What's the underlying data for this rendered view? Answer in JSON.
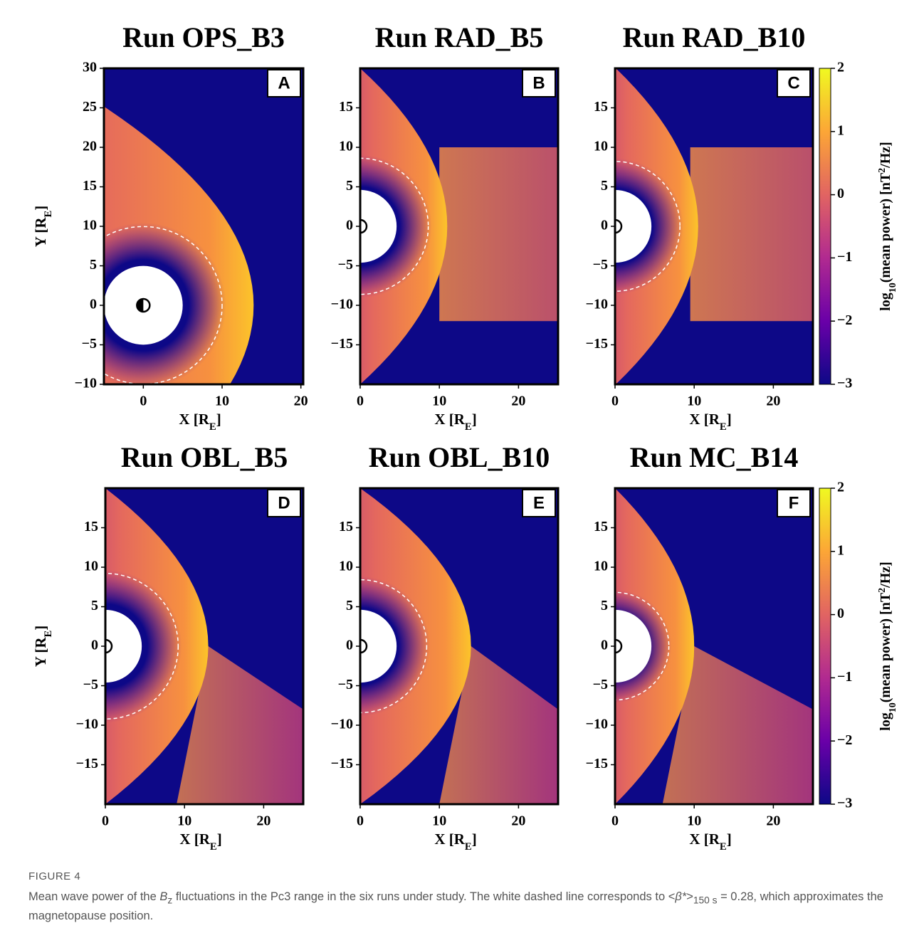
{
  "chart_data": [
    {
      "type": "heatmap",
      "title": "Run OPS_B3",
      "panel": "A",
      "xlabel": [
        "X [R",
        "E",
        "]"
      ],
      "ylabel": [
        "Y [R",
        "E",
        "]"
      ],
      "xlim": [
        -5,
        20.3
      ],
      "ylim": [
        -10,
        30
      ],
      "xticks": [
        0,
        10,
        20
      ],
      "yticks": [
        {
          "value": -10,
          "label": "−10"
        },
        {
          "value": -5,
          "label": "−5"
        },
        0,
        5,
        10,
        15,
        20,
        25,
        30
      ]
    },
    {
      "type": "heatmap",
      "title": "Run RAD_B5",
      "panel": "B",
      "xlabel": [
        "X [R",
        "E",
        "]"
      ],
      "xlim": [
        0,
        25
      ],
      "ylim": [
        -20,
        20
      ],
      "xticks": [
        0,
        10,
        20
      ],
      "yticks": [
        {
          "value": -15,
          "label": "−15"
        },
        {
          "value": -10,
          "label": "−10"
        },
        {
          "value": -5,
          "label": "−5"
        },
        0,
        5,
        10,
        15
      ]
    },
    {
      "type": "heatmap",
      "title": "Run RAD_B10",
      "panel": "C",
      "xlabel": [
        "X [R",
        "E",
        "]"
      ],
      "xlim": [
        0,
        25
      ],
      "ylim": [
        -20,
        20
      ],
      "xticks": [
        0,
        10,
        20
      ],
      "yticks": [
        {
          "value": -15,
          "label": "−15"
        },
        {
          "value": -10,
          "label": "−10"
        },
        {
          "value": -5,
          "label": "−5"
        },
        0,
        5,
        10,
        15
      ],
      "colorbar": {
        "label": [
          "log",
          "10",
          "(mean power) [nT",
          "2",
          "/Hz]"
        ],
        "lim": [
          -3,
          2
        ],
        "ticks": [
          {
            "value": -3,
            "label": "−3"
          },
          {
            "value": -2,
            "label": "−2"
          },
          {
            "value": -1,
            "label": "−1"
          },
          0,
          1,
          2
        ],
        "colormap": [
          "#0d0887",
          "#6a00a8",
          "#b12a90",
          "#e16462",
          "#fca636",
          "#f0f921"
        ]
      }
    },
    {
      "type": "heatmap",
      "title": "Run OBL_B5",
      "panel": "D",
      "xlabel": [
        "X [R",
        "E",
        "]"
      ],
      "ylabel": [
        "Y [R",
        "E",
        "]"
      ],
      "xlim": [
        0,
        25
      ],
      "ylim": [
        -20,
        20
      ],
      "xticks": [
        0,
        10,
        20
      ],
      "yticks": [
        {
          "value": -15,
          "label": "−15"
        },
        {
          "value": -10,
          "label": "−10"
        },
        {
          "value": -5,
          "label": "−5"
        },
        0,
        5,
        10,
        15
      ]
    },
    {
      "type": "heatmap",
      "title": "Run OBL_B10",
      "panel": "E",
      "xlabel": [
        "X [R",
        "E",
        "]"
      ],
      "xlim": [
        0,
        25
      ],
      "ylim": [
        -20,
        20
      ],
      "xticks": [
        0,
        10,
        20
      ],
      "yticks": [
        {
          "value": -15,
          "label": "−15"
        },
        {
          "value": -10,
          "label": "−10"
        },
        {
          "value": -5,
          "label": "−5"
        },
        0,
        5,
        10,
        15
      ]
    },
    {
      "type": "heatmap",
      "title": "Run MC_B14",
      "panel": "F",
      "xlabel": [
        "X [R",
        "E",
        "]"
      ],
      "xlim": [
        0,
        25
      ],
      "ylim": [
        -20,
        20
      ],
      "xticks": [
        0,
        10,
        20
      ],
      "yticks": [
        {
          "value": -15,
          "label": "−15"
        },
        {
          "value": -10,
          "label": "−10"
        },
        {
          "value": -5,
          "label": "−5"
        },
        0,
        5,
        10,
        15
      ],
      "colorbar": {
        "label": [
          "log",
          "10",
          "(mean power) [nT",
          "2",
          "/Hz]"
        ],
        "lim": [
          -3,
          2
        ],
        "ticks": [
          {
            "value": -3,
            "label": "−3"
          },
          {
            "value": -2,
            "label": "−2"
          },
          {
            "value": -1,
            "label": "−1"
          },
          0,
          1,
          2
        ],
        "colormap": [
          "#0d0887",
          "#6a00a8",
          "#b12a90",
          "#e16462",
          "#fca636",
          "#f0f921"
        ]
      }
    }
  ],
  "caption": {
    "label": "FIGURE 4",
    "parts": [
      "Mean wave power of the ",
      "B",
      "z",
      " fluctuations in the Pc3 range in the six runs under study. The white dashed line corresponds to <",
      "β*",
      ">",
      "150 s",
      " = 0.28, which approximates the magnetopause position."
    ]
  }
}
